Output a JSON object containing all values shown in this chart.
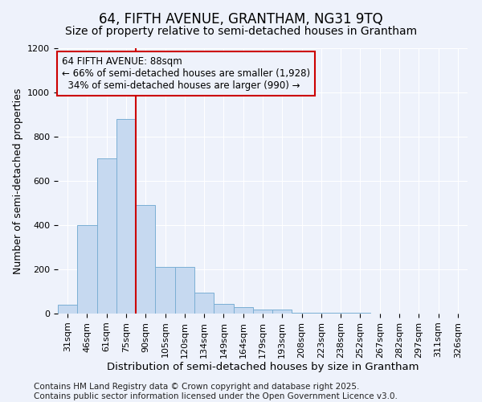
{
  "title1": "64, FIFTH AVENUE, GRANTHAM, NG31 9TQ",
  "title2": "Size of property relative to semi-detached houses in Grantham",
  "xlabel": "Distribution of semi-detached houses by size in Grantham",
  "ylabel": "Number of semi-detached properties",
  "categories": [
    "31sqm",
    "46sqm",
    "61sqm",
    "75sqm",
    "90sqm",
    "105sqm",
    "120sqm",
    "134sqm",
    "149sqm",
    "164sqm",
    "179sqm",
    "193sqm",
    "208sqm",
    "223sqm",
    "238sqm",
    "252sqm",
    "267sqm",
    "282sqm",
    "297sqm",
    "311sqm",
    "326sqm"
  ],
  "values": [
    40,
    400,
    700,
    880,
    490,
    210,
    210,
    95,
    42,
    28,
    20,
    20,
    5,
    3,
    3,
    2,
    1,
    1,
    1,
    0,
    1
  ],
  "bar_color": "#c6d9f0",
  "bar_edge_color": "#7bafd4",
  "vline_color": "#cc0000",
  "vline_bar_index": 3,
  "annotation_text": "64 FIFTH AVENUE: 88sqm\n← 66% of semi-detached houses are smaller (1,928)\n  34% of semi-detached houses are larger (990) →",
  "annotation_box_edgecolor": "#cc0000",
  "ylim": [
    0,
    1200
  ],
  "yticks": [
    0,
    200,
    400,
    600,
    800,
    1000,
    1200
  ],
  "footer1": "Contains HM Land Registry data © Crown copyright and database right 2025.",
  "footer2": "Contains public sector information licensed under the Open Government Licence v3.0.",
  "bg_color": "#eef2fb",
  "grid_color": "#ffffff",
  "title1_fontsize": 12,
  "title2_fontsize": 10,
  "tick_fontsize": 8,
  "xlabel_fontsize": 9.5,
  "ylabel_fontsize": 9,
  "annotation_fontsize": 8.5,
  "footer_fontsize": 7.5
}
